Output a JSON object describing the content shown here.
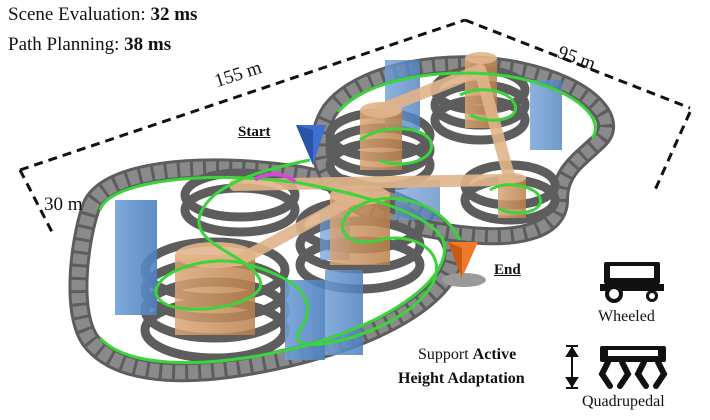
{
  "metrics": {
    "scene_label": "Scene Evaluation:",
    "scene_value": "32 ms",
    "path_label": "Path Planning:",
    "path_value": "38 ms"
  },
  "dimensions": {
    "length": "155 m",
    "width": "95 m",
    "height": "30 m"
  },
  "markers": {
    "start": "Start",
    "end": "End"
  },
  "colors": {
    "track": "#6b6b6b",
    "path": "#3bd43b",
    "building": "#5b8fc9",
    "cylinder": "#c98f55",
    "start_marker": "#3f6fd1",
    "end_marker": "#f07a2a"
  },
  "robots": {
    "wheeled": "Wheeled",
    "quadrupedal": "Quadrupedal"
  },
  "adaptation": {
    "prefix": "Support",
    "bold1": "Active",
    "bold2": "Height Adaptation"
  }
}
